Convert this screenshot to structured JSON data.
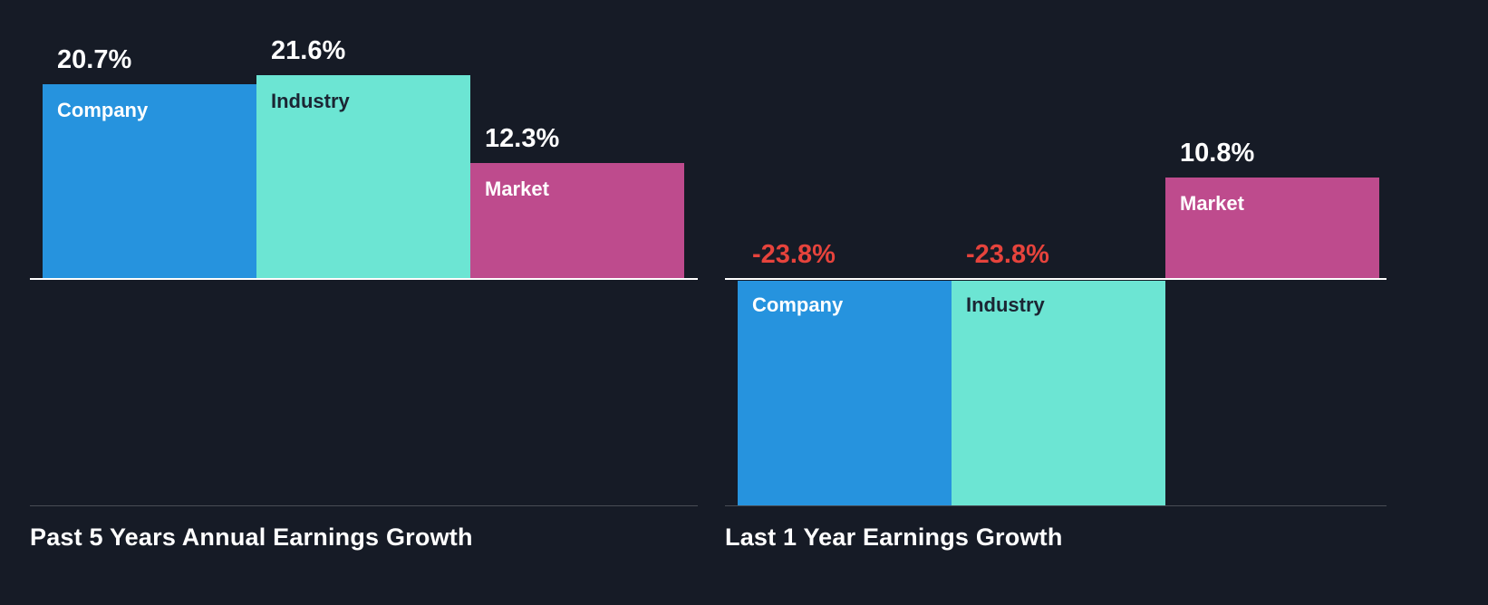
{
  "colors": {
    "background": "#161B26",
    "axis_line": "#FFFFFF",
    "separator": "rgba(255,255,255,0.22)",
    "title_text": "#FFFFFF",
    "positive_value_text": "#FFFFFF",
    "negative_value_text": "#E6433C",
    "series": {
      "company": {
        "bar": "#2693DE",
        "label": "#FFFFFF"
      },
      "industry": {
        "bar": "#6CE5D3",
        "label": "#1B2533"
      },
      "market": {
        "bar": "#BE4B8D",
        "label": "#FFFFFF"
      }
    }
  },
  "chart_data": [
    {
      "type": "bar",
      "title": "Past 5 Years Annual Earnings Growth",
      "categories": [
        "Company",
        "Industry",
        "Market"
      ],
      "series_keys": [
        "company",
        "industry",
        "market"
      ],
      "values": [
        20.7,
        21.6,
        12.3
      ],
      "value_labels": [
        "20.7%",
        "21.6%",
        "12.3%"
      ],
      "ylim": [
        -25,
        23
      ],
      "grid": false,
      "legend": "none",
      "value_label_position": "above bar, left-aligned",
      "category_label_position": "inside bar top"
    },
    {
      "type": "bar",
      "title": "Last 1 Year Earnings Growth",
      "categories": [
        "Company",
        "Industry",
        "Market"
      ],
      "series_keys": [
        "company",
        "industry",
        "market"
      ],
      "values": [
        -23.8,
        -23.8,
        10.8
      ],
      "value_labels": [
        "-23.8%",
        "-23.8%",
        "10.8%"
      ],
      "ylim": [
        -25,
        23
      ],
      "grid": false,
      "legend": "none",
      "value_label_position": "above baseline for negative bars, above bar for positive",
      "category_label_position": "inside bar top (below baseline for negative bars)"
    }
  ]
}
